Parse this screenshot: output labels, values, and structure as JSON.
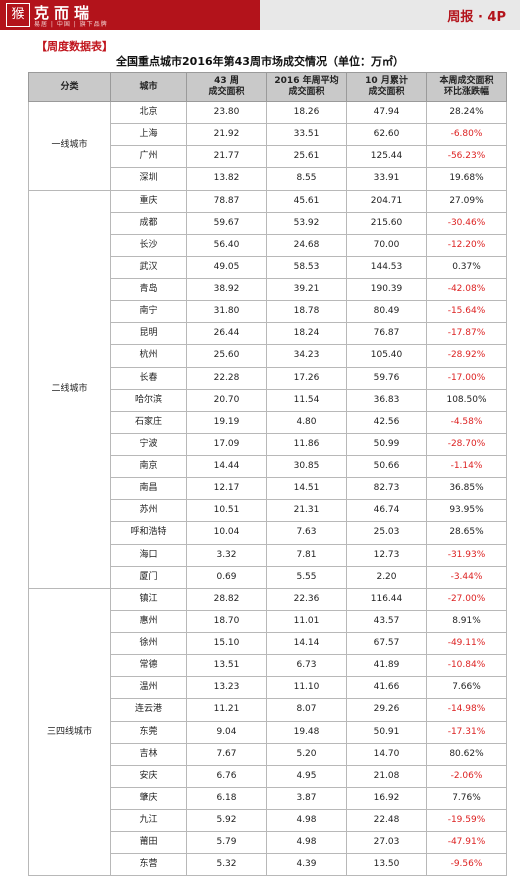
{
  "header": {
    "seal_glyph": "猴",
    "brand": "克而瑞",
    "brand_sub": "易居 | 中国 | 旗下品牌",
    "report": "周报 · 4P"
  },
  "section_label": "【周度数据表】",
  "table_title": "全国重点城市2016年第43周市场成交情况（单位：万㎡）",
  "columns": [
    "分类",
    "城市",
    "43 周\n成交面积",
    "2016 年周平均\n成交面积",
    "10 月累计\n成交面积",
    "本周成交面积\n环比涨跌幅"
  ],
  "groups": [
    {
      "category": "一线城市",
      "rows": [
        [
          "北京",
          "23.80",
          "18.26",
          "47.94",
          "28.24%"
        ],
        [
          "上海",
          "21.92",
          "33.51",
          "62.60",
          "-6.80%"
        ],
        [
          "广州",
          "21.77",
          "25.61",
          "125.44",
          "-56.23%"
        ],
        [
          "深圳",
          "13.82",
          "8.55",
          "33.91",
          "19.68%"
        ]
      ]
    },
    {
      "category": "二线城市",
      "rows": [
        [
          "重庆",
          "78.87",
          "45.61",
          "204.71",
          "27.09%"
        ],
        [
          "成都",
          "59.67",
          "53.92",
          "215.60",
          "-30.46%"
        ],
        [
          "长沙",
          "56.40",
          "24.68",
          "70.00",
          "-12.20%"
        ],
        [
          "武汉",
          "49.05",
          "58.53",
          "144.53",
          "0.37%"
        ],
        [
          "青岛",
          "38.92",
          "39.21",
          "190.39",
          "-42.08%"
        ],
        [
          "南宁",
          "31.80",
          "18.78",
          "80.49",
          "-15.64%"
        ],
        [
          "昆明",
          "26.44",
          "18.24",
          "76.87",
          "-17.87%"
        ],
        [
          "杭州",
          "25.60",
          "34.23",
          "105.40",
          "-28.92%"
        ],
        [
          "长春",
          "22.28",
          "17.26",
          "59.76",
          "-17.00%"
        ],
        [
          "哈尔滨",
          "20.70",
          "11.54",
          "36.83",
          "108.50%"
        ],
        [
          "石家庄",
          "19.19",
          "4.80",
          "42.56",
          "-4.58%"
        ],
        [
          "宁波",
          "17.09",
          "11.86",
          "50.99",
          "-28.70%"
        ],
        [
          "南京",
          "14.44",
          "30.85",
          "50.66",
          "-1.14%"
        ],
        [
          "南昌",
          "12.17",
          "14.51",
          "82.73",
          "36.85%"
        ],
        [
          "苏州",
          "10.51",
          "21.31",
          "46.74",
          "93.95%"
        ],
        [
          "呼和浩特",
          "10.04",
          "7.63",
          "25.03",
          "28.65%"
        ],
        [
          "海口",
          "3.32",
          "7.81",
          "12.73",
          "-31.93%"
        ],
        [
          "厦门",
          "0.69",
          "5.55",
          "2.20",
          "-3.44%"
        ]
      ]
    },
    {
      "category": "三四线城市",
      "rows": [
        [
          "镇江",
          "28.82",
          "22.36",
          "116.44",
          "-27.00%"
        ],
        [
          "惠州",
          "18.70",
          "11.01",
          "43.57",
          "8.91%"
        ],
        [
          "徐州",
          "15.10",
          "14.14",
          "67.57",
          "-49.11%"
        ],
        [
          "常德",
          "13.51",
          "6.73",
          "41.89",
          "-10.84%"
        ],
        [
          "温州",
          "13.23",
          "11.10",
          "41.66",
          "7.66%"
        ],
        [
          "连云港",
          "11.21",
          "8.07",
          "29.26",
          "-14.98%"
        ],
        [
          "东莞",
          "9.04",
          "19.48",
          "50.91",
          "-17.31%"
        ],
        [
          "吉林",
          "7.67",
          "5.20",
          "14.70",
          "80.62%"
        ],
        [
          "安庆",
          "6.76",
          "4.95",
          "21.08",
          "-2.06%"
        ],
        [
          "肇庆",
          "6.18",
          "3.87",
          "16.92",
          "7.76%"
        ],
        [
          "九江",
          "5.92",
          "4.98",
          "22.48",
          "-19.59%"
        ],
        [
          "莆田",
          "5.79",
          "4.98",
          "27.03",
          "-47.91%"
        ],
        [
          "东营",
          "5.32",
          "4.39",
          "13.50",
          "-9.56%"
        ]
      ]
    }
  ]
}
